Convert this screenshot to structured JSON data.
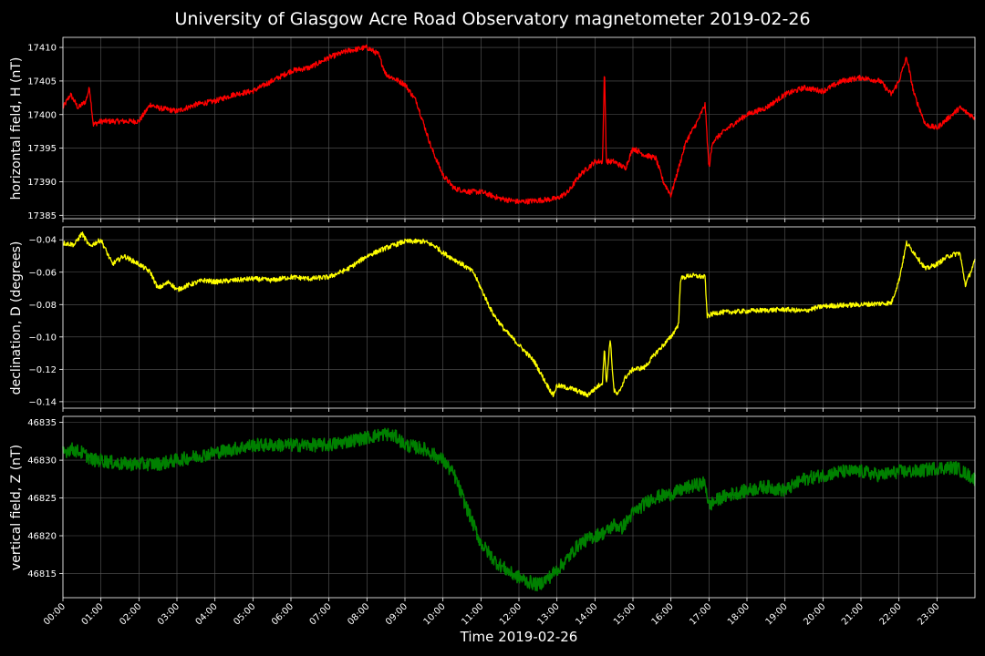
{
  "chart_data": {
    "title": "University of Glasgow Acre Road Observatory magnetometer 2019-02-26",
    "xlabel": "Time 2019-02-26",
    "xrange_hours": [
      0,
      24
    ],
    "x_tick_labels": [
      "00:00",
      "01:00",
      "02:00",
      "03:00",
      "04:00",
      "05:00",
      "06:00",
      "07:00",
      "08:00",
      "09:00",
      "10:00",
      "11:00",
      "12:00",
      "13:00",
      "14:00",
      "15:00",
      "16:00",
      "17:00",
      "18:00",
      "19:00",
      "20:00",
      "21:00",
      "22:00",
      "23:00"
    ],
    "grid": true,
    "background": "#000000",
    "panels": [
      {
        "type": "line",
        "ylabel": "horizontal field, H (nT)",
        "color": "#ff0000",
        "ylim": [
          17384.5,
          17411.5
        ],
        "yticks": [
          17385,
          17390,
          17395,
          17400,
          17405,
          17410
        ],
        "ytick_labels": [
          "17385",
          "17390",
          "17395",
          "17400",
          "17405",
          "17410"
        ],
        "noise": 0.4,
        "points": [
          [
            0.0,
            17401
          ],
          [
            0.2,
            17403
          ],
          [
            0.4,
            17401
          ],
          [
            0.6,
            17402
          ],
          [
            0.7,
            17404
          ],
          [
            0.8,
            17398.5
          ],
          [
            1.0,
            17399
          ],
          [
            1.5,
            17399
          ],
          [
            2.0,
            17399
          ],
          [
            2.3,
            17401.5
          ],
          [
            2.5,
            17401
          ],
          [
            3.0,
            17400.5
          ],
          [
            3.5,
            17401.5
          ],
          [
            4.0,
            17402
          ],
          [
            4.5,
            17403
          ],
          [
            5.0,
            17403.5
          ],
          [
            5.5,
            17405
          ],
          [
            6.0,
            17406.5
          ],
          [
            6.5,
            17407
          ],
          [
            7.0,
            17408.5
          ],
          [
            7.5,
            17409.5
          ],
          [
            8.0,
            17410
          ],
          [
            8.3,
            17409
          ],
          [
            8.5,
            17406
          ],
          [
            9.0,
            17404.5
          ],
          [
            9.3,
            17402
          ],
          [
            9.7,
            17395
          ],
          [
            10.0,
            17391
          ],
          [
            10.3,
            17389
          ],
          [
            10.7,
            17388.5
          ],
          [
            11.0,
            17388.5
          ],
          [
            11.5,
            17387.5
          ],
          [
            12.0,
            17387
          ],
          [
            12.5,
            17387.2
          ],
          [
            13.0,
            17387.5
          ],
          [
            13.3,
            17388.5
          ],
          [
            13.6,
            17391
          ],
          [
            14.0,
            17393
          ],
          [
            14.2,
            17393
          ],
          [
            14.25,
            17407
          ],
          [
            14.3,
            17393
          ],
          [
            14.5,
            17393
          ],
          [
            14.8,
            17392
          ],
          [
            15.0,
            17395
          ],
          [
            15.3,
            17394
          ],
          [
            15.6,
            17393.5
          ],
          [
            15.8,
            17390
          ],
          [
            16.0,
            17388
          ],
          [
            16.2,
            17392
          ],
          [
            16.4,
            17396
          ],
          [
            16.7,
            17399
          ],
          [
            16.9,
            17401.5
          ],
          [
            17.0,
            17392
          ],
          [
            17.1,
            17396
          ],
          [
            17.5,
            17398
          ],
          [
            18.0,
            17400
          ],
          [
            18.5,
            17401
          ],
          [
            19.0,
            17403
          ],
          [
            19.5,
            17404
          ],
          [
            20.0,
            17403.5
          ],
          [
            20.5,
            17405
          ],
          [
            21.0,
            17405.5
          ],
          [
            21.5,
            17405
          ],
          [
            21.8,
            17403
          ],
          [
            22.0,
            17405
          ],
          [
            22.2,
            17408.5
          ],
          [
            22.4,
            17403
          ],
          [
            22.7,
            17398.5
          ],
          [
            23.0,
            17398
          ],
          [
            23.3,
            17399.5
          ],
          [
            23.6,
            17401
          ],
          [
            24.0,
            17399.5
          ]
        ]
      },
      {
        "type": "line",
        "ylabel": "declination, D (degrees)",
        "color": "#ffff00",
        "ylim": [
          -0.144,
          -0.032
        ],
        "yticks": [
          -0.14,
          -0.12,
          -0.1,
          -0.08,
          -0.06,
          -0.04
        ],
        "ytick_labels": [
          "−0.14",
          "−0.12",
          "−0.10",
          "−0.08",
          "−0.06",
          "−0.04"
        ],
        "noise": 0.0015,
        "points": [
          [
            0.0,
            -0.042
          ],
          [
            0.3,
            -0.043
          ],
          [
            0.5,
            -0.036
          ],
          [
            0.7,
            -0.044
          ],
          [
            1.0,
            -0.04
          ],
          [
            1.3,
            -0.055
          ],
          [
            1.6,
            -0.05
          ],
          [
            2.0,
            -0.055
          ],
          [
            2.3,
            -0.06
          ],
          [
            2.5,
            -0.07
          ],
          [
            2.8,
            -0.066
          ],
          [
            3.0,
            -0.071
          ],
          [
            3.3,
            -0.068
          ],
          [
            3.7,
            -0.065
          ],
          [
            4.0,
            -0.066
          ],
          [
            4.5,
            -0.065
          ],
          [
            5.0,
            -0.064
          ],
          [
            5.5,
            -0.065
          ],
          [
            6.0,
            -0.063
          ],
          [
            6.5,
            -0.064
          ],
          [
            7.0,
            -0.063
          ],
          [
            7.5,
            -0.058
          ],
          [
            8.0,
            -0.05
          ],
          [
            8.5,
            -0.045
          ],
          [
            9.0,
            -0.041
          ],
          [
            9.5,
            -0.041
          ],
          [
            9.8,
            -0.044
          ],
          [
            10.0,
            -0.048
          ],
          [
            10.5,
            -0.055
          ],
          [
            10.8,
            -0.06
          ],
          [
            11.0,
            -0.07
          ],
          [
            11.3,
            -0.085
          ],
          [
            11.6,
            -0.095
          ],
          [
            12.0,
            -0.105
          ],
          [
            12.4,
            -0.115
          ],
          [
            12.7,
            -0.128
          ],
          [
            12.9,
            -0.136
          ],
          [
            13.0,
            -0.13
          ],
          [
            13.4,
            -0.132
          ],
          [
            13.8,
            -0.136
          ],
          [
            14.0,
            -0.132
          ],
          [
            14.2,
            -0.128
          ],
          [
            14.25,
            -0.105
          ],
          [
            14.3,
            -0.13
          ],
          [
            14.4,
            -0.101
          ],
          [
            14.5,
            -0.133
          ],
          [
            14.6,
            -0.136
          ],
          [
            14.8,
            -0.125
          ],
          [
            15.0,
            -0.12
          ],
          [
            15.3,
            -0.119
          ],
          [
            15.6,
            -0.11
          ],
          [
            16.0,
            -0.1
          ],
          [
            16.2,
            -0.092
          ],
          [
            16.25,
            -0.064
          ],
          [
            16.5,
            -0.062
          ],
          [
            16.9,
            -0.063
          ],
          [
            16.95,
            -0.087
          ],
          [
            17.2,
            -0.085
          ],
          [
            18.0,
            -0.084
          ],
          [
            19.0,
            -0.083
          ],
          [
            19.5,
            -0.084
          ],
          [
            20.0,
            -0.081
          ],
          [
            21.0,
            -0.08
          ],
          [
            21.8,
            -0.079
          ],
          [
            22.0,
            -0.065
          ],
          [
            22.2,
            -0.042
          ],
          [
            22.4,
            -0.048
          ],
          [
            22.7,
            -0.058
          ],
          [
            23.0,
            -0.055
          ],
          [
            23.3,
            -0.05
          ],
          [
            23.6,
            -0.048
          ],
          [
            23.75,
            -0.068
          ],
          [
            24.0,
            -0.053
          ]
        ]
      },
      {
        "type": "line",
        "ylabel": "vertical field, Z (nT)",
        "color": "#008000",
        "ylim": [
          46811.8,
          46835.8
        ],
        "yticks": [
          46815,
          46820,
          46825,
          46830,
          46835
        ],
        "ytick_labels": [
          "46815",
          "46820",
          "46825",
          "46830",
          "46835"
        ],
        "noise": 0.9,
        "points": [
          [
            0.0,
            46831
          ],
          [
            0.2,
            46831.5
          ],
          [
            0.5,
            46831
          ],
          [
            0.8,
            46830
          ],
          [
            1.0,
            46830
          ],
          [
            1.5,
            46829.5
          ],
          [
            2.0,
            46829.5
          ],
          [
            2.5,
            46829.5
          ],
          [
            3.0,
            46830
          ],
          [
            3.5,
            46830.5
          ],
          [
            4.0,
            46831
          ],
          [
            4.5,
            46831.5
          ],
          [
            5.0,
            46832
          ],
          [
            5.5,
            46832
          ],
          [
            6.0,
            46832
          ],
          [
            6.5,
            46832
          ],
          [
            7.0,
            46832
          ],
          [
            7.5,
            46832.5
          ],
          [
            8.0,
            46833
          ],
          [
            8.5,
            46833.5
          ],
          [
            8.8,
            46833
          ],
          [
            9.0,
            46832
          ],
          [
            9.5,
            46831.5
          ],
          [
            10.0,
            46830
          ],
          [
            10.3,
            46828
          ],
          [
            10.6,
            46824
          ],
          [
            11.0,
            46819
          ],
          [
            11.4,
            46816.5
          ],
          [
            11.8,
            46815
          ],
          [
            12.2,
            46814
          ],
          [
            12.5,
            46813.5
          ],
          [
            12.8,
            46814.5
          ],
          [
            13.2,
            46816.5
          ],
          [
            13.6,
            46819
          ],
          [
            14.0,
            46820
          ],
          [
            14.3,
            46820.5
          ],
          [
            14.5,
            46821.5
          ],
          [
            14.7,
            46821
          ],
          [
            15.0,
            46823
          ],
          [
            15.5,
            46825
          ],
          [
            16.0,
            46825.5
          ],
          [
            16.5,
            46826.5
          ],
          [
            16.9,
            46827
          ],
          [
            17.0,
            46824
          ],
          [
            17.3,
            46825
          ],
          [
            17.6,
            46825.5
          ],
          [
            18.0,
            46826
          ],
          [
            18.5,
            46826.5
          ],
          [
            19.0,
            46826
          ],
          [
            19.5,
            46827.5
          ],
          [
            20.0,
            46828
          ],
          [
            20.5,
            46828.5
          ],
          [
            21.0,
            46828.5
          ],
          [
            21.5,
            46828
          ],
          [
            22.0,
            46828.5
          ],
          [
            22.5,
            46828.5
          ],
          [
            23.0,
            46829
          ],
          [
            23.5,
            46829
          ],
          [
            24.0,
            46827.5
          ]
        ]
      }
    ]
  }
}
